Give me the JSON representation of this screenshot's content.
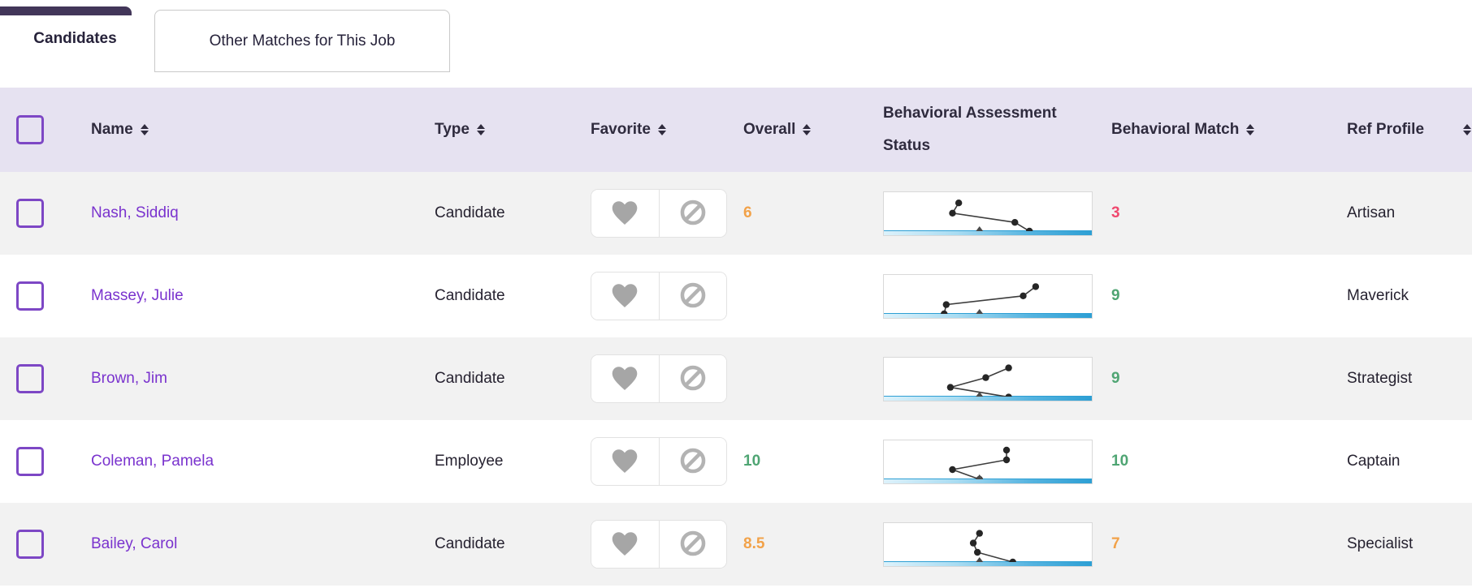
{
  "tabs": [
    {
      "label": "Candidates",
      "active": true
    },
    {
      "label": "Other Matches for This Job",
      "active": false
    }
  ],
  "table": {
    "columns": {
      "name": "Name",
      "type": "Type",
      "favorite": "Favorite",
      "overall": "Overall",
      "bas": "Behavioral Assessment Status",
      "match": "Behavioral Match",
      "ref": "Ref Profile"
    },
    "rows": [
      {
        "name": "Nash, Siddiq",
        "type": "Candidate",
        "overall": "6",
        "overall_color": "#f2a249",
        "match": "3",
        "match_color": "#f0486e",
        "ref": "Artisan",
        "pattern": [
          [
            0.36,
            0.22
          ],
          [
            0.33,
            0.43
          ],
          [
            0.63,
            0.62
          ],
          [
            0.7,
            0.8
          ]
        ]
      },
      {
        "name": "Massey, Julie",
        "type": "Candidate",
        "overall": "",
        "overall_color": "",
        "match": "9",
        "match_color": "#4fa573",
        "ref": "Maverick",
        "pattern": [
          [
            0.73,
            0.24
          ],
          [
            0.67,
            0.43
          ],
          [
            0.3,
            0.61
          ],
          [
            0.29,
            0.8
          ]
        ]
      },
      {
        "name": "Brown, Jim",
        "type": "Candidate",
        "overall": "",
        "overall_color": "",
        "match": "9",
        "match_color": "#4fa573",
        "ref": "Strategist",
        "pattern": [
          [
            0.6,
            0.21
          ],
          [
            0.49,
            0.41
          ],
          [
            0.32,
            0.61
          ],
          [
            0.6,
            0.81
          ]
        ]
      },
      {
        "name": "Coleman, Pamela",
        "type": "Employee",
        "overall": "10",
        "overall_color": "#4fa573",
        "match": "10",
        "match_color": "#4fa573",
        "ref": "Captain",
        "pattern": [
          [
            0.59,
            0.2
          ],
          [
            0.59,
            0.4
          ],
          [
            0.33,
            0.6
          ],
          [
            0.46,
            0.8
          ]
        ]
      },
      {
        "name": "Bailey, Carol",
        "type": "Candidate",
        "overall": "8.5",
        "overall_color": "#f2a249",
        "match": "7",
        "match_color": "#f2a249",
        "ref": "Specialist",
        "pattern": [
          [
            0.46,
            0.21
          ],
          [
            0.43,
            0.41
          ],
          [
            0.45,
            0.6
          ],
          [
            0.62,
            0.8
          ]
        ]
      }
    ]
  },
  "icons": {
    "favorite": "heart-icon",
    "dismiss": "block-icon",
    "sort": "sort-updown-icon"
  },
  "colors": {
    "tab_accent": "#423659",
    "header_bg": "#e6e2f1",
    "row_alt_bg": "#f2f2f2",
    "checkbox_border": "#7d47c5",
    "name_link": "#7a33ce",
    "score_green": "#4fa573",
    "score_orange": "#f2a249",
    "score_red": "#f0486e",
    "chart_bar_start": "#ddf2fb",
    "chart_bar_end": "#2d9fd4"
  }
}
